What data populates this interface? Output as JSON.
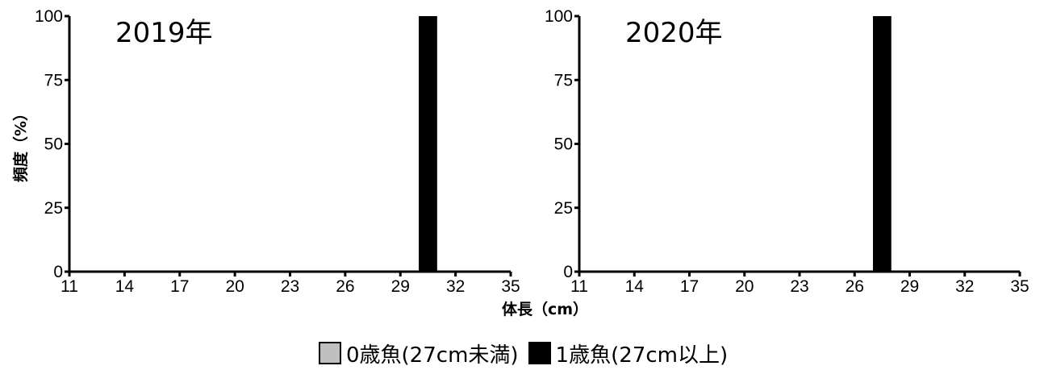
{
  "chart_data": [
    {
      "type": "bar",
      "title": "2019年",
      "x_ticks": [
        11,
        14,
        17,
        20,
        23,
        26,
        29,
        32,
        35
      ],
      "xlim": [
        11,
        35
      ],
      "y_ticks": [
        0,
        25,
        50,
        75,
        100
      ],
      "ylim": [
        0,
        100
      ],
      "ylabel": "頻度（%）",
      "xlabel": "",
      "series": [
        {
          "legend": "1歳魚",
          "bars": [
            {
              "x_start": 30,
              "x_end": 31,
              "value": 100
            }
          ]
        }
      ]
    },
    {
      "type": "bar",
      "title": "2020年",
      "x_ticks": [
        11,
        14,
        17,
        20,
        23,
        26,
        29,
        32,
        35
      ],
      "xlim": [
        11,
        35
      ],
      "y_ticks": [
        0,
        25,
        50,
        75,
        100
      ],
      "ylim": [
        0,
        100
      ],
      "ylabel": "",
      "xlabel": "体長（cm）",
      "series": [
        {
          "legend": "1歳魚",
          "bars": [
            {
              "x_start": 27,
              "x_end": 28,
              "value": 100
            }
          ]
        }
      ]
    }
  ],
  "legend": {
    "items": [
      {
        "label": "0歳魚(27cm未満)",
        "color": "#c0c0c0"
      },
      {
        "label": "1歳魚(27cm以上)",
        "color": "#000000"
      }
    ]
  }
}
